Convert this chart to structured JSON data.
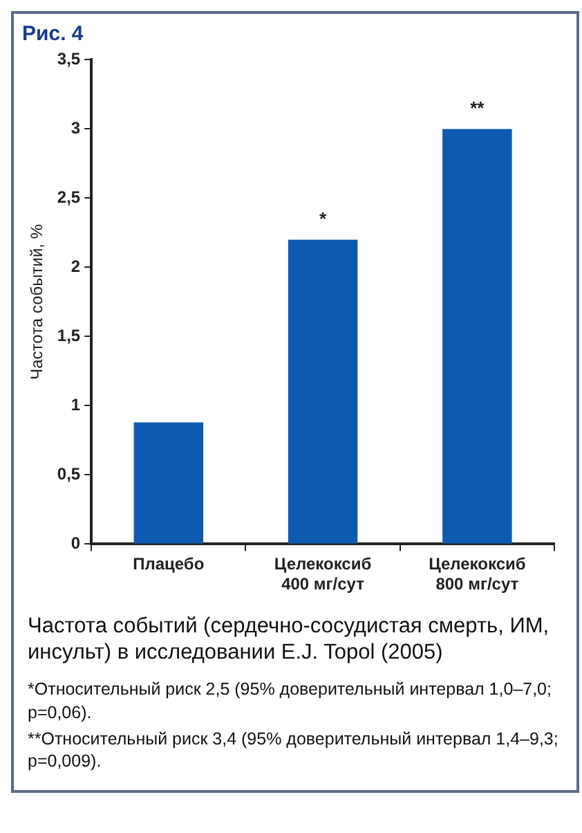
{
  "chart_data": {
    "type": "bar",
    "title": "Рис. 4",
    "ylabel": "Частота событий, %",
    "categories": [
      "Плацебо",
      "Целекоксиб 400 мг/сут",
      "Целекоксиб 800 мг/сут"
    ],
    "values": [
      0.88,
      2.2,
      3.0
    ],
    "color": "#0d5bb0",
    "ylim": [
      0,
      3.5
    ],
    "yticks": [
      0,
      {
        "value": 0.5,
        "label": "0,5"
      },
      1,
      {
        "value": 1.5,
        "label": "1,5"
      },
      2,
      {
        "value": 2.5,
        "label": "2,5"
      },
      3,
      {
        "value": 3.5,
        "label": "3,5"
      }
    ],
    "grid": false,
    "annotations": [
      {
        "text": "*",
        "x": "Целекоксиб 400 мг/сут",
        "y": 2.2
      },
      {
        "text": "**",
        "x": "Целекоксиб 800 мг/сут",
        "y": 3.0
      },
      "Частота событий (сердечно-сосудистая смерть, ИМ, инсульт) в исследовании E.J. Topol (2005)",
      "*Относительный риск 2,5 (95% доверительный интервал 1,0–7,0; p=0,06).",
      "**Относительный риск 3,4 (95% доверительный интервал 1,4–9,3; p=0,009)."
    ]
  }
}
